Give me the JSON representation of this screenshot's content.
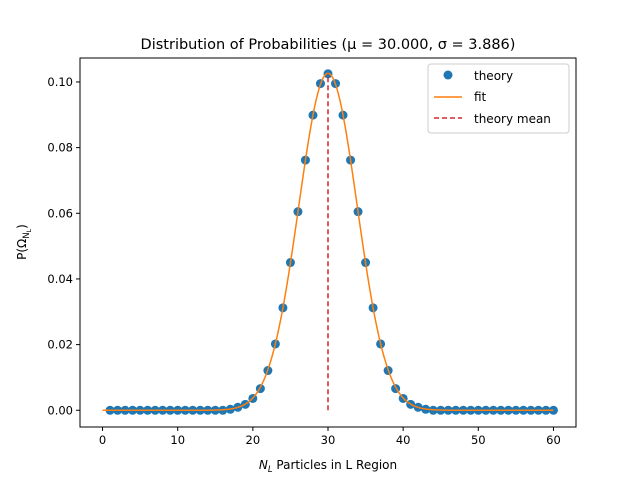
{
  "chart_data": {
    "type": "scatter",
    "title": "Distribution of Probabilities (μ = 30.000, σ = 3.886)",
    "xlabel_var": "N",
    "xlabel_sub": "L",
    "xlabel_rest": " Particles in L Region",
    "ylabel_main": "P(Ω",
    "ylabel_sub": "N",
    "ylabel_subsub": "L",
    "ylabel_close": ")",
    "xlim": [
      -3,
      63
    ],
    "ylim": [
      -0.0051,
      0.1073
    ],
    "xticks": [
      0,
      10,
      20,
      30,
      40,
      50,
      60
    ],
    "yticks": [
      0.0,
      0.02,
      0.04,
      0.06,
      0.08,
      0.1
    ],
    "ytick_labels": [
      "0.00",
      "0.02",
      "0.04",
      "0.06",
      "0.08",
      "0.10"
    ],
    "legend_position": "top-right",
    "series": [
      {
        "name": "theory",
        "kind": "points",
        "color": "#1f77b4",
        "x": [
          1,
          2,
          3,
          4,
          5,
          6,
          7,
          8,
          9,
          10,
          11,
          12,
          13,
          14,
          15,
          16,
          17,
          18,
          19,
          20,
          21,
          22,
          23,
          24,
          25,
          26,
          27,
          28,
          29,
          30,
          31,
          32,
          33,
          34,
          35,
          36,
          37,
          38,
          39,
          40,
          41,
          42,
          43,
          44,
          45,
          46,
          47,
          48,
          49,
          50,
          51,
          52,
          53,
          54,
          55,
          56,
          57,
          58,
          59,
          60
        ],
        "y": [
          0,
          0,
          0,
          0,
          0,
          0,
          0,
          0,
          0,
          0,
          0,
          0,
          0,
          0,
          0,
          0,
          0.0003,
          0.0009,
          0.0018,
          0.0036,
          0.0066,
          0.0121,
          0.0202,
          0.0312,
          0.045,
          0.0605,
          0.0762,
          0.0899,
          0.0995,
          0.1025,
          0.0995,
          0.0899,
          0.0762,
          0.0605,
          0.045,
          0.0312,
          0.0202,
          0.0121,
          0.0066,
          0.0036,
          0.0018,
          0.0009,
          0.0003,
          0,
          0,
          0,
          0,
          0,
          0,
          0,
          0,
          0,
          0,
          0,
          0,
          0,
          0,
          0,
          0,
          0
        ]
      },
      {
        "name": "fit",
        "kind": "curve",
        "color": "#ff7f0e",
        "mu": 30.0,
        "sigma": 3.886,
        "x_range": [
          0,
          60
        ]
      },
      {
        "name": "theory mean",
        "kind": "vline",
        "color": "#d62728",
        "x": 30,
        "y_range": [
          0,
          0.1025
        ]
      }
    ]
  }
}
